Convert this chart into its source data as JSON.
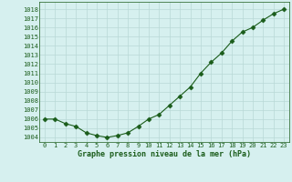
{
  "x": [
    0,
    1,
    2,
    3,
    4,
    5,
    6,
    7,
    8,
    9,
    10,
    11,
    12,
    13,
    14,
    15,
    16,
    17,
    18,
    19,
    20,
    21,
    22,
    23
  ],
  "y": [
    1006.0,
    1006.0,
    1005.5,
    1005.2,
    1004.5,
    1004.2,
    1004.0,
    1004.2,
    1004.5,
    1005.2,
    1006.0,
    1006.5,
    1007.5,
    1008.5,
    1009.5,
    1011.0,
    1012.2,
    1013.2,
    1014.5,
    1015.5,
    1016.0,
    1016.8,
    1017.5,
    1018.0
  ],
  "line_color": "#1a5c1a",
  "marker": "D",
  "marker_size": 2.5,
  "bg_color": "#d6f0ef",
  "grid_color": "#b8d8d6",
  "xlabel": "Graphe pression niveau de la mer (hPa)",
  "xlabel_color": "#1a5c1a",
  "tick_color": "#1a5c1a",
  "ylim": [
    1003.5,
    1018.8
  ],
  "xlim": [
    -0.5,
    23.5
  ],
  "yticks": [
    1004,
    1005,
    1006,
    1007,
    1008,
    1009,
    1010,
    1011,
    1012,
    1013,
    1014,
    1015,
    1016,
    1017,
    1018
  ],
  "xticks": [
    0,
    1,
    2,
    3,
    4,
    5,
    6,
    7,
    8,
    9,
    10,
    11,
    12,
    13,
    14,
    15,
    16,
    17,
    18,
    19,
    20,
    21,
    22,
    23
  ],
  "tick_fontsize": 5.0,
  "xlabel_fontsize": 6.0
}
